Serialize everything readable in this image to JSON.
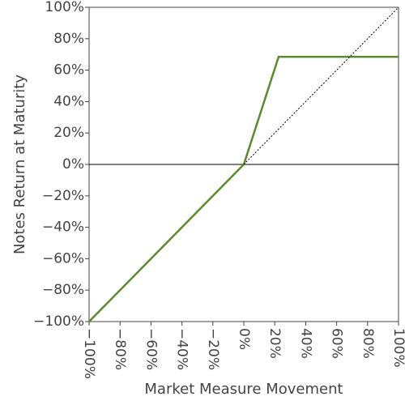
{
  "chart_data": {
    "type": "line",
    "x_label": "Market Measure Movement",
    "y_label": "Notes Return at Maturity",
    "x": [
      -100,
      0,
      22.5,
      100
    ],
    "series": [
      {
        "color": "#5b8a2e",
        "values": [
          -100,
          0,
          68.5,
          68.5
        ],
        "style": "solid"
      },
      {
        "color": "#000000",
        "values": [
          null,
          0,
          22.5,
          100
        ],
        "style": "dotted"
      }
    ],
    "hlines": [
      0
    ],
    "xlim": [
      -100,
      100
    ],
    "ylim": [
      -100,
      100
    ],
    "xticks": [
      {
        "value": -100,
        "label": "−100%"
      },
      {
        "value": -80,
        "label": "−80%"
      },
      {
        "value": -60,
        "label": "−60%"
      },
      {
        "value": -40,
        "label": "−40%"
      },
      {
        "value": -20,
        "label": "−20%"
      },
      {
        "value": 0,
        "label": "0%"
      },
      {
        "value": 20,
        "label": "20%"
      },
      {
        "value": 40,
        "label": "40%"
      },
      {
        "value": 60,
        "label": "60%"
      },
      {
        "value": 80,
        "label": "80%"
      },
      {
        "value": 100,
        "label": "100%"
      }
    ],
    "yticks": [
      {
        "value": -100,
        "label": "−100%"
      },
      {
        "value": -80,
        "label": "−80%"
      },
      {
        "value": -60,
        "label": "−60%"
      },
      {
        "value": -40,
        "label": "−40%"
      },
      {
        "value": -20,
        "label": "−20%"
      },
      {
        "value": 0,
        "label": "0%"
      },
      {
        "value": 20,
        "label": "20%"
      },
      {
        "value": 40,
        "label": "40%"
      },
      {
        "value": 60,
        "label": "60%"
      },
      {
        "value": 80,
        "label": "80%"
      },
      {
        "value": 100,
        "label": "100%"
      }
    ],
    "grid": false
  }
}
